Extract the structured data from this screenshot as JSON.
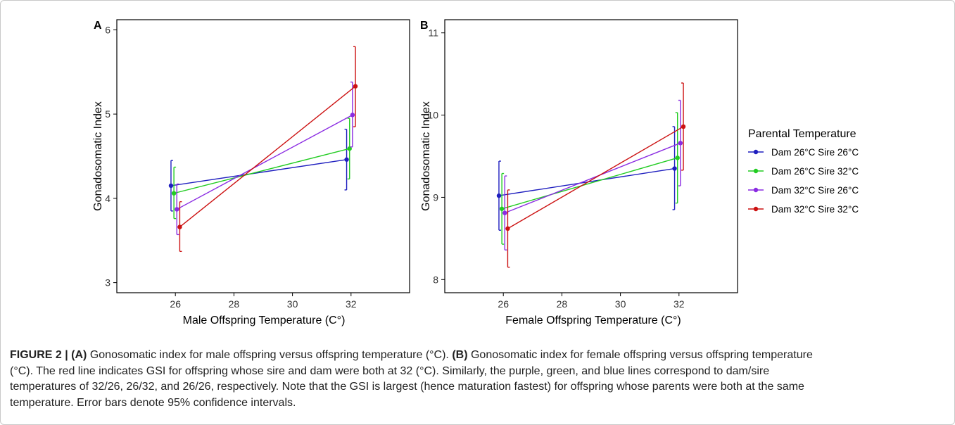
{
  "panels": [
    {
      "label": "A",
      "xlabel": "Male Offspring Temperature (C°)",
      "ylabel": "Gonadosomatic Index"
    },
    {
      "label": "B",
      "xlabel": "Female Offspring Temperature (C°)",
      "ylabel": "Gonadosomatic Index"
    }
  ],
  "legend": {
    "title": "Parental Temperature",
    "entries": [
      "Dam 26°C Sire 26°C",
      "Dam 26°C Sire 32°C",
      "Dam 32°C Sire 26°C",
      "Dam 32°C Sire 32°C"
    ],
    "colors": [
      "#1f1fbf",
      "#22cc22",
      "#8a2be2",
      "#cc1111"
    ]
  },
  "caption": {
    "figure_label": "FIGURE 2 |",
    "a_tag": "(A)",
    "a_text": " Gonosomatic index for male offspring versus offspring temperature (°C). ",
    "b_tag": "(B)",
    "b_text": " Gonosomatic index for female offspring versus offspring temperature",
    "line2": "(°C). The red line indicates GSI for offspring whose sire and dam were both at 32 (°C). Similarly, the purple, green, and blue lines correspond to dam/sire",
    "line3": "temperatures of 32/26, 26/32, and 26/26, respectively. Note that the GSI is largest (hence maturation fastest) for offspring whose parents were both at the same",
    "line4": "temperature. Error bars denote 95% confidence intervals."
  },
  "chart_data": [
    {
      "type": "line",
      "panel": "A",
      "xlabel": "Male Offspring Temperature (C°)",
      "ylabel": "Gonadosomatic Index",
      "xlim": [
        24.0,
        34.0
      ],
      "ylim": [
        2.88,
        6.12
      ],
      "xticks": [
        26,
        28,
        30,
        32
      ],
      "yticks": [
        3,
        4,
        5,
        6
      ],
      "grid": false,
      "series": [
        {
          "name": "Dam 26°C Sire 26°C",
          "color": "#1f1fbf",
          "x": [
            25.85,
            31.85
          ],
          "y": [
            4.15,
            4.46
          ],
          "ci_low": [
            3.85,
            4.1
          ],
          "ci_high": [
            4.45,
            4.82
          ]
        },
        {
          "name": "Dam 26°C Sire 32°C",
          "color": "#22cc22",
          "x": [
            25.95,
            31.95
          ],
          "y": [
            4.06,
            4.59
          ],
          "ci_low": [
            3.76,
            4.23
          ],
          "ci_high": [
            4.37,
            4.95
          ]
        },
        {
          "name": "Dam 32°C Sire 26°C",
          "color": "#8a2be2",
          "x": [
            26.05,
            32.05
          ],
          "y": [
            3.87,
            4.99
          ],
          "ci_low": [
            3.57,
            4.61
          ],
          "ci_high": [
            4.17,
            5.38
          ]
        },
        {
          "name": "Dam 32°C Sire 32°C",
          "color": "#cc1111",
          "x": [
            26.15,
            32.15
          ],
          "y": [
            3.66,
            5.33
          ],
          "ci_low": [
            3.37,
            4.85
          ],
          "ci_high": [
            3.96,
            5.8
          ]
        }
      ]
    },
    {
      "type": "line",
      "panel": "B",
      "xlabel": "Female Offspring Temperature (C°)",
      "ylabel": "Gonadosomatic Index",
      "xlim": [
        24.0,
        34.0
      ],
      "ylim": [
        7.84,
        11.16
      ],
      "xticks": [
        26,
        28,
        30,
        32
      ],
      "yticks": [
        8,
        9,
        10,
        11
      ],
      "grid": false,
      "series": [
        {
          "name": "Dam 26°C Sire 26°C",
          "color": "#1f1fbf",
          "x": [
            25.85,
            31.85
          ],
          "y": [
            9.02,
            9.35
          ],
          "ci_low": [
            8.6,
            8.85
          ],
          "ci_high": [
            9.44,
            9.86
          ]
        },
        {
          "name": "Dam 26°C Sire 32°C",
          "color": "#22cc22",
          "x": [
            25.95,
            31.95
          ],
          "y": [
            8.86,
            9.48
          ],
          "ci_low": [
            8.43,
            8.93
          ],
          "ci_high": [
            9.29,
            10.03
          ]
        },
        {
          "name": "Dam 32°C Sire 26°C",
          "color": "#8a2be2",
          "x": [
            26.05,
            32.05
          ],
          "y": [
            8.81,
            9.66
          ],
          "ci_low": [
            8.36,
            9.14
          ],
          "ci_high": [
            9.26,
            10.18
          ]
        },
        {
          "name": "Dam 32°C Sire 32°C",
          "color": "#cc1111",
          "x": [
            26.15,
            32.15
          ],
          "y": [
            8.62,
            9.86
          ],
          "ci_low": [
            8.15,
            9.33
          ],
          "ci_high": [
            9.09,
            10.39
          ]
        }
      ]
    }
  ]
}
